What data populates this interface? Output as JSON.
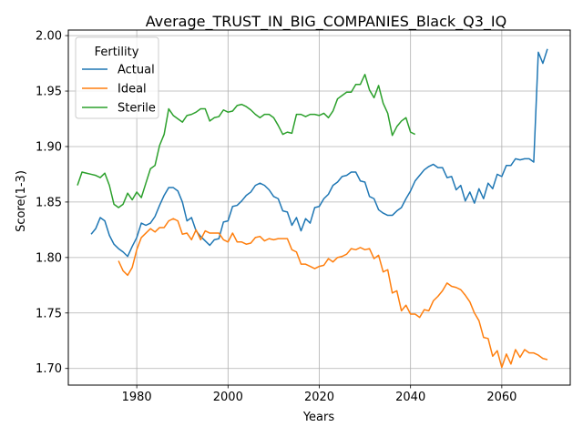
{
  "chart_data": {
    "type": "line",
    "title": "Average_TRUST_IN_BIG_COMPANIES_Black_Q3_IQ",
    "xlabel": "Years",
    "ylabel": "Score(1-3)",
    "xlim": [
      1965,
      2075
    ],
    "ylim": [
      1.685,
      2.005
    ],
    "xticks": [
      1980,
      2000,
      2020,
      2040,
      2060
    ],
    "yticks": [
      1.7,
      1.75,
      1.8,
      1.85,
      1.9,
      1.95,
      2.0
    ],
    "xtick_labels": [
      "1980",
      "2000",
      "2020",
      "2040",
      "2060"
    ],
    "ytick_labels": [
      "1.70",
      "1.75",
      "1.80",
      "1.85",
      "1.90",
      "1.95",
      "2.00"
    ],
    "grid": true,
    "legend": {
      "title": "Fertility",
      "placement": "top-left"
    },
    "series": [
      {
        "name": "Actual",
        "color": "#1f77b4",
        "points": [
          [
            1970,
            1.821
          ],
          [
            1971,
            1.826
          ],
          [
            1972,
            1.836
          ],
          [
            1973,
            1.833
          ],
          [
            1974,
            1.82
          ],
          [
            1975,
            1.812
          ],
          [
            1976,
            1.808
          ],
          [
            1977,
            1.805
          ],
          [
            1978,
            1.801
          ],
          [
            1979,
            1.81
          ],
          [
            1980,
            1.818
          ],
          [
            1981,
            1.831
          ],
          [
            1982,
            1.829
          ],
          [
            1983,
            1.831
          ],
          [
            1984,
            1.837
          ],
          [
            1985,
            1.847
          ],
          [
            1986,
            1.856
          ],
          [
            1987,
            1.863
          ],
          [
            1988,
            1.863
          ],
          [
            1989,
            1.86
          ],
          [
            1990,
            1.85
          ],
          [
            1991,
            1.833
          ],
          [
            1992,
            1.836
          ],
          [
            1993,
            1.824
          ],
          [
            1994,
            1.819
          ],
          [
            1995,
            1.815
          ],
          [
            1996,
            1.811
          ],
          [
            1997,
            1.816
          ],
          [
            1998,
            1.817
          ],
          [
            1999,
            1.832
          ],
          [
            2000,
            1.833
          ],
          [
            2001,
            1.846
          ],
          [
            2002,
            1.847
          ],
          [
            2003,
            1.851
          ],
          [
            2004,
            1.856
          ],
          [
            2005,
            1.859
          ],
          [
            2006,
            1.865
          ],
          [
            2007,
            1.867
          ],
          [
            2008,
            1.865
          ],
          [
            2009,
            1.861
          ],
          [
            2010,
            1.855
          ],
          [
            2011,
            1.853
          ],
          [
            2012,
            1.842
          ],
          [
            2013,
            1.841
          ],
          [
            2014,
            1.829
          ],
          [
            2015,
            1.836
          ],
          [
            2016,
            1.824
          ],
          [
            2017,
            1.835
          ],
          [
            2018,
            1.831
          ],
          [
            2019,
            1.845
          ],
          [
            2020,
            1.846
          ],
          [
            2021,
            1.853
          ],
          [
            2022,
            1.857
          ],
          [
            2023,
            1.865
          ],
          [
            2024,
            1.868
          ],
          [
            2025,
            1.873
          ],
          [
            2026,
            1.874
          ],
          [
            2027,
            1.877
          ],
          [
            2028,
            1.877
          ],
          [
            2029,
            1.869
          ],
          [
            2030,
            1.868
          ],
          [
            2031,
            1.855
          ],
          [
            2032,
            1.853
          ],
          [
            2033,
            1.843
          ],
          [
            2034,
            1.84
          ],
          [
            2035,
            1.838
          ],
          [
            2036,
            1.838
          ],
          [
            2037,
            1.842
          ],
          [
            2038,
            1.845
          ],
          [
            2039,
            1.853
          ],
          [
            2040,
            1.86
          ],
          [
            2041,
            1.869
          ],
          [
            2042,
            1.874
          ],
          [
            2043,
            1.879
          ],
          [
            2044,
            1.882
          ],
          [
            2045,
            1.884
          ],
          [
            2046,
            1.881
          ],
          [
            2047,
            1.881
          ],
          [
            2048,
            1.872
          ],
          [
            2049,
            1.873
          ],
          [
            2050,
            1.861
          ],
          [
            2051,
            1.865
          ],
          [
            2052,
            1.851
          ],
          [
            2053,
            1.859
          ],
          [
            2054,
            1.849
          ],
          [
            2055,
            1.862
          ],
          [
            2056,
            1.853
          ],
          [
            2057,
            1.867
          ],
          [
            2058,
            1.862
          ],
          [
            2059,
            1.875
          ],
          [
            2060,
            1.873
          ],
          [
            2061,
            1.883
          ],
          [
            2062,
            1.883
          ],
          [
            2063,
            1.889
          ],
          [
            2064,
            1.888
          ],
          [
            2065,
            1.889
          ],
          [
            2066,
            1.889
          ],
          [
            2067,
            1.886
          ],
          [
            2068,
            1.985
          ],
          [
            2069,
            1.975
          ],
          [
            2070,
            1.988
          ]
        ]
      },
      {
        "name": "Ideal",
        "color": "#ff7f0e",
        "points": [
          [
            1976,
            1.797
          ],
          [
            1977,
            1.788
          ],
          [
            1978,
            1.784
          ],
          [
            1979,
            1.791
          ],
          [
            1980,
            1.807
          ],
          [
            1981,
            1.818
          ],
          [
            1982,
            1.822
          ],
          [
            1983,
            1.826
          ],
          [
            1984,
            1.823
          ],
          [
            1985,
            1.827
          ],
          [
            1986,
            1.827
          ],
          [
            1987,
            1.833
          ],
          [
            1988,
            1.835
          ],
          [
            1989,
            1.833
          ],
          [
            1990,
            1.821
          ],
          [
            1991,
            1.822
          ],
          [
            1992,
            1.816
          ],
          [
            1993,
            1.825
          ],
          [
            1994,
            1.816
          ],
          [
            1995,
            1.824
          ],
          [
            1996,
            1.822
          ],
          [
            1997,
            1.822
          ],
          [
            1998,
            1.822
          ],
          [
            1999,
            1.816
          ],
          [
            2000,
            1.814
          ],
          [
            2001,
            1.822
          ],
          [
            2002,
            1.814
          ],
          [
            2003,
            1.814
          ],
          [
            2004,
            1.812
          ],
          [
            2005,
            1.813
          ],
          [
            2006,
            1.818
          ],
          [
            2007,
            1.819
          ],
          [
            2008,
            1.815
          ],
          [
            2009,
            1.817
          ],
          [
            2010,
            1.816
          ],
          [
            2011,
            1.817
          ],
          [
            2012,
            1.817
          ],
          [
            2013,
            1.817
          ],
          [
            2014,
            1.807
          ],
          [
            2015,
            1.805
          ],
          [
            2016,
            1.794
          ],
          [
            2017,
            1.794
          ],
          [
            2018,
            1.792
          ],
          [
            2019,
            1.79
          ],
          [
            2020,
            1.792
          ],
          [
            2021,
            1.793
          ],
          [
            2022,
            1.799
          ],
          [
            2023,
            1.796
          ],
          [
            2024,
            1.8
          ],
          [
            2025,
            1.801
          ],
          [
            2026,
            1.803
          ],
          [
            2027,
            1.808
          ],
          [
            2028,
            1.807
          ],
          [
            2029,
            1.809
          ],
          [
            2030,
            1.807
          ],
          [
            2031,
            1.808
          ],
          [
            2032,
            1.799
          ],
          [
            2033,
            1.802
          ],
          [
            2034,
            1.787
          ],
          [
            2035,
            1.789
          ],
          [
            2036,
            1.768
          ],
          [
            2037,
            1.77
          ],
          [
            2038,
            1.752
          ],
          [
            2039,
            1.757
          ],
          [
            2040,
            1.749
          ],
          [
            2041,
            1.749
          ],
          [
            2042,
            1.746
          ],
          [
            2043,
            1.753
          ],
          [
            2044,
            1.752
          ],
          [
            2045,
            1.761
          ],
          [
            2046,
            1.765
          ],
          [
            2047,
            1.77
          ],
          [
            2048,
            1.777
          ],
          [
            2049,
            1.774
          ],
          [
            2050,
            1.773
          ],
          [
            2051,
            1.771
          ],
          [
            2052,
            1.766
          ],
          [
            2053,
            1.76
          ],
          [
            2054,
            1.75
          ],
          [
            2055,
            1.743
          ],
          [
            2056,
            1.728
          ],
          [
            2057,
            1.727
          ],
          [
            2058,
            1.711
          ],
          [
            2059,
            1.716
          ],
          [
            2060,
            1.701
          ],
          [
            2061,
            1.713
          ],
          [
            2062,
            1.704
          ],
          [
            2063,
            1.717
          ],
          [
            2064,
            1.71
          ],
          [
            2065,
            1.717
          ],
          [
            2066,
            1.714
          ],
          [
            2067,
            1.714
          ],
          [
            2068,
            1.712
          ],
          [
            2069,
            1.709
          ],
          [
            2070,
            1.708
          ]
        ]
      },
      {
        "name": "Sterile",
        "color": "#2ca02c",
        "points": [
          [
            1967,
            1.865
          ],
          [
            1968,
            1.877
          ],
          [
            1969,
            1.876
          ],
          [
            1970,
            1.875
          ],
          [
            1971,
            1.874
          ],
          [
            1972,
            1.872
          ],
          [
            1973,
            1.876
          ],
          [
            1974,
            1.865
          ],
          [
            1975,
            1.848
          ],
          [
            1976,
            1.845
          ],
          [
            1977,
            1.848
          ],
          [
            1978,
            1.858
          ],
          [
            1979,
            1.852
          ],
          [
            1980,
            1.859
          ],
          [
            1981,
            1.854
          ],
          [
            1982,
            1.867
          ],
          [
            1983,
            1.88
          ],
          [
            1984,
            1.883
          ],
          [
            1985,
            1.901
          ],
          [
            1986,
            1.911
          ],
          [
            1987,
            1.934
          ],
          [
            1988,
            1.928
          ],
          [
            1989,
            1.925
          ],
          [
            1990,
            1.922
          ],
          [
            1991,
            1.928
          ],
          [
            1992,
            1.929
          ],
          [
            1993,
            1.931
          ],
          [
            1994,
            1.934
          ],
          [
            1995,
            1.934
          ],
          [
            1996,
            1.923
          ],
          [
            1997,
            1.926
          ],
          [
            1998,
            1.927
          ],
          [
            1999,
            1.933
          ],
          [
            2000,
            1.931
          ],
          [
            2001,
            1.932
          ],
          [
            2002,
            1.937
          ],
          [
            2003,
            1.938
          ],
          [
            2004,
            1.936
          ],
          [
            2005,
            1.933
          ],
          [
            2006,
            1.929
          ],
          [
            2007,
            1.926
          ],
          [
            2008,
            1.929
          ],
          [
            2009,
            1.929
          ],
          [
            2010,
            1.926
          ],
          [
            2011,
            1.919
          ],
          [
            2012,
            1.911
          ],
          [
            2013,
            1.913
          ],
          [
            2014,
            1.912
          ],
          [
            2015,
            1.929
          ],
          [
            2016,
            1.929
          ],
          [
            2017,
            1.927
          ],
          [
            2018,
            1.929
          ],
          [
            2019,
            1.929
          ],
          [
            2020,
            1.928
          ],
          [
            2021,
            1.93
          ],
          [
            2022,
            1.926
          ],
          [
            2023,
            1.932
          ],
          [
            2024,
            1.943
          ],
          [
            2025,
            1.946
          ],
          [
            2026,
            1.949
          ],
          [
            2027,
            1.949
          ],
          [
            2028,
            1.956
          ],
          [
            2029,
            1.956
          ],
          [
            2030,
            1.965
          ],
          [
            2031,
            1.951
          ],
          [
            2032,
            1.944
          ],
          [
            2033,
            1.955
          ],
          [
            2034,
            1.939
          ],
          [
            2035,
            1.93
          ],
          [
            2036,
            1.91
          ],
          [
            2037,
            1.918
          ],
          [
            2038,
            1.923
          ],
          [
            2039,
            1.926
          ],
          [
            2040,
            1.913
          ],
          [
            2041,
            1.911
          ]
        ]
      }
    ]
  }
}
